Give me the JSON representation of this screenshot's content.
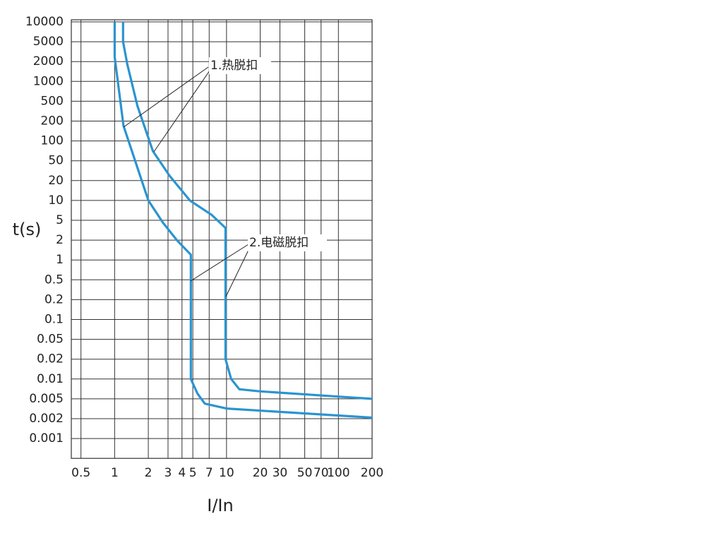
{
  "chart_data": {
    "type": "line",
    "x_label": "I/In",
    "y_label": "t(s)",
    "xscale": "log",
    "xlim": [
      0.41,
      200
    ],
    "xticks": [
      0.5,
      1,
      2,
      3,
      4,
      5,
      7,
      10,
      20,
      30,
      50,
      70,
      100,
      200
    ],
    "ylim": [
      0.0005,
      10000
    ],
    "yticks": [
      10000,
      5000,
      2000,
      1000,
      500,
      200,
      100,
      50,
      20,
      10,
      5,
      2,
      1,
      0.5,
      0.2,
      0.1,
      0.05,
      0.02,
      0.01,
      0.005,
      0.002,
      0.001
    ],
    "grid": true,
    "series": [
      {
        "color": "#2a94d0",
        "x": [
          1,
          1,
          1.2,
          2,
          2.7,
          3.6,
          4.8,
          4.8,
          5.5,
          6.4,
          10,
          200
        ],
        "values": [
          10000,
          2500,
          170,
          10,
          4.5,
          2,
          1.2,
          0.01,
          0.006,
          0.004,
          0.0032,
          0.0021
        ]
      },
      {
        "color": "#2a94d0",
        "x": [
          1.19,
          1.19,
          1.3,
          1.6,
          2.2,
          3.1,
          4.7,
          7.4,
          9.8,
          9.8,
          11,
          13,
          20,
          200
        ],
        "values": [
          10000,
          5000,
          1800,
          400,
          70,
          25,
          10,
          6,
          3.5,
          0.02,
          0.01,
          0.007,
          0.0065,
          0.005
        ]
      }
    ],
    "annotations": [
      "1.热脱扣",
      "2.电磁脱扣"
    ]
  }
}
